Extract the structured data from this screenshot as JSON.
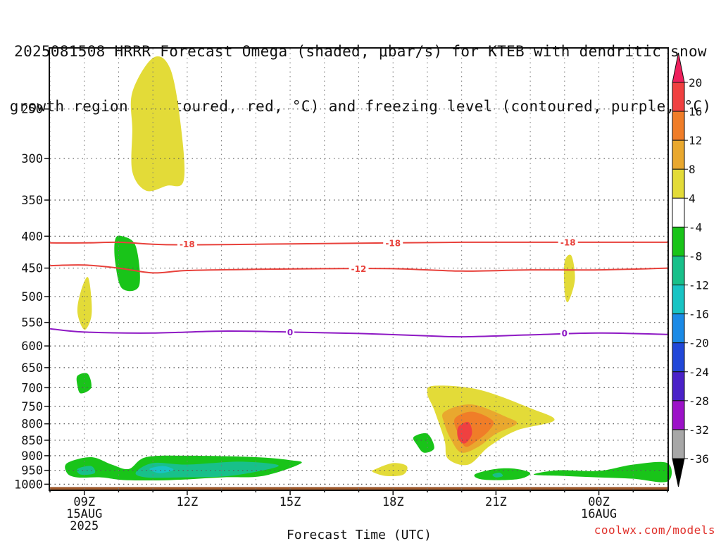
{
  "title_line1": "2025081508 HRRR Forecast Omega (shaded, μbar/s) for KTEB with dendritic snow",
  "title_line2": "growth region (contoured, red, °C) and freezing level (contoured, purple, °C)",
  "credit": "coolwx.com/models",
  "chart_data": {
    "type": "heatmap",
    "xlabel": "Forecast Time (UTC)",
    "ylabel": "",
    "x_ticks": [
      {
        "hour": 9,
        "lines": [
          "09Z",
          "15AUG",
          "2025"
        ]
      },
      {
        "hour": 12,
        "lines": [
          "12Z"
        ]
      },
      {
        "hour": 15,
        "lines": [
          "15Z"
        ]
      },
      {
        "hour": 18,
        "lines": [
          "18Z"
        ]
      },
      {
        "hour": 21,
        "lines": [
          "21Z"
        ]
      },
      {
        "hour": 24,
        "lines": [
          "00Z",
          "16AUG"
        ]
      }
    ],
    "xlim_hours": [
      8,
      26
    ],
    "y_ticks": [
      250,
      300,
      350,
      400,
      450,
      500,
      550,
      600,
      650,
      700,
      750,
      800,
      850,
      900,
      950,
      1000
    ],
    "ylim_hPa": [
      1020,
      200
    ],
    "grid": true,
    "colorbar": {
      "labels": [
        "20",
        "16",
        "12",
        "8",
        "4",
        "-4",
        "-8",
        "-12",
        "-16",
        "-20",
        "-24",
        "-28",
        "-32",
        "-36"
      ],
      "colors": [
        "#ee1f5c",
        "#f04040",
        "#f07d28",
        "#e9a82e",
        "#e3db38",
        "#ffffff",
        "#19c419",
        "#18c08a",
        "#18c4c4",
        "#1a8ae6",
        "#2147d8",
        "#4a21c8",
        "#9c12c8",
        "#a7a7a7",
        "#000000"
      ]
    },
    "contours": [
      {
        "kind": "dendritic",
        "value": -18,
        "label": "-18",
        "color": "#e8413b",
        "points": [
          [
            8,
            410
          ],
          [
            9,
            410
          ],
          [
            10,
            409
          ],
          [
            11,
            412
          ],
          [
            12,
            413
          ],
          [
            14,
            412
          ],
          [
            16,
            411
          ],
          [
            18,
            410
          ],
          [
            20,
            409
          ],
          [
            22,
            409
          ],
          [
            24,
            409
          ],
          [
            26,
            409
          ]
        ]
      },
      {
        "kind": "dendritic",
        "value": -12,
        "label": "-12",
        "color": "#e8413b",
        "points": [
          [
            8,
            446
          ],
          [
            9,
            445
          ],
          [
            10,
            450
          ],
          [
            11,
            458
          ],
          [
            12,
            454
          ],
          [
            14,
            452
          ],
          [
            16,
            451
          ],
          [
            18,
            451
          ],
          [
            20,
            455
          ],
          [
            22,
            453
          ],
          [
            24,
            453
          ],
          [
            26,
            450
          ]
        ]
      },
      {
        "kind": "freezing",
        "value": 0,
        "label": "0",
        "color": "#8e19c4",
        "points": [
          [
            8,
            563
          ],
          [
            9,
            570
          ],
          [
            11,
            572
          ],
          [
            13,
            568
          ],
          [
            15,
            570
          ],
          [
            17,
            573
          ],
          [
            19,
            578
          ],
          [
            20,
            580
          ],
          [
            22,
            576
          ],
          [
            24,
            572
          ],
          [
            26,
            575
          ]
        ]
      }
    ],
    "contour_label_positions": [
      {
        "label": "-18",
        "hour": 12.0,
        "hPa": 412
      },
      {
        "label": "-18",
        "hour": 18.0,
        "hPa": 410
      },
      {
        "label": "-18",
        "hour": 23.1,
        "hPa": 409
      },
      {
        "label": "-12",
        "hour": 17.0,
        "hPa": 451
      },
      {
        "label": "0",
        "hour": 15.0,
        "hPa": 570
      },
      {
        "label": "0",
        "hour": 23.0,
        "hPa": 572
      }
    ],
    "shaded_regions": [
      {
        "value": 4,
        "color": "#e3db38",
        "points": [
          [
            10.4,
            235
          ],
          [
            11.0,
            207
          ],
          [
            11.5,
            215
          ],
          [
            11.8,
            262
          ],
          [
            11.9,
            325
          ],
          [
            11.4,
            332
          ],
          [
            10.8,
            338
          ],
          [
            10.4,
            315
          ],
          [
            10.4,
            270
          ]
        ]
      },
      {
        "value": 4,
        "color": "#e3db38",
        "points": [
          [
            8.9,
            490
          ],
          [
            9.1,
            465
          ],
          [
            9.2,
            500
          ],
          [
            9.2,
            540
          ],
          [
            9.0,
            565
          ],
          [
            8.8,
            530
          ]
        ]
      },
      {
        "value": -4,
        "color": "#19c419",
        "points": [
          [
            9.9,
            405
          ],
          [
            10.1,
            400
          ],
          [
            10.5,
            415
          ],
          [
            10.6,
            480
          ],
          [
            10.1,
            485
          ],
          [
            9.9,
            440
          ]
        ]
      },
      {
        "value": -4,
        "color": "#19c419",
        "points": [
          [
            8.8,
            670
          ],
          [
            9.1,
            665
          ],
          [
            9.2,
            700
          ],
          [
            8.9,
            715
          ],
          [
            8.8,
            695
          ]
        ]
      },
      {
        "value": 4,
        "color": "#e3db38",
        "points": [
          [
            23.0,
            440
          ],
          [
            23.2,
            430
          ],
          [
            23.3,
            470
          ],
          [
            23.1,
            510
          ],
          [
            23.0,
            490
          ]
        ]
      },
      {
        "value": -4,
        "color": "#19c419",
        "points": [
          [
            8.5,
            925
          ],
          [
            9.2,
            905
          ],
          [
            9.8,
            930
          ],
          [
            10.3,
            945
          ],
          [
            10.8,
            905
          ],
          [
            12,
            900
          ],
          [
            14,
            905
          ],
          [
            15,
            915
          ],
          [
            15.3,
            927
          ],
          [
            14.2,
            970
          ],
          [
            13,
            975
          ],
          [
            11.5,
            985
          ],
          [
            10.2,
            985
          ],
          [
            9.5,
            975
          ],
          [
            8.8,
            975
          ],
          [
            8.5,
            960
          ]
        ]
      },
      {
        "value": -8,
        "color": "#18c08a",
        "points": [
          [
            8.8,
            945
          ],
          [
            9.2,
            935
          ],
          [
            9.3,
            960
          ],
          [
            8.9,
            965
          ]
        ]
      },
      {
        "value": -8,
        "color": "#18c08a",
        "points": [
          [
            10.5,
            958
          ],
          [
            11.0,
            925
          ],
          [
            12.0,
            930
          ],
          [
            13.5,
            920
          ],
          [
            14.6,
            930
          ],
          [
            14.4,
            945
          ],
          [
            13.2,
            970
          ],
          [
            11.8,
            975
          ],
          [
            10.8,
            975
          ]
        ]
      },
      {
        "value": -12,
        "color": "#18c4c4",
        "points": [
          [
            10.9,
            945
          ],
          [
            11.3,
            935
          ],
          [
            11.6,
            948
          ],
          [
            11.2,
            960
          ]
        ]
      },
      {
        "value": 4,
        "color": "#e3db38",
        "points": [
          [
            17.5,
            945
          ],
          [
            18.0,
            925
          ],
          [
            18.4,
            935
          ],
          [
            18.3,
            965
          ],
          [
            17.8,
            970
          ],
          [
            17.4,
            955
          ]
        ]
      },
      {
        "value": 4,
        "color": "#e3db38",
        "points": [
          [
            19.0,
            715
          ],
          [
            19.2,
            695
          ],
          [
            20.5,
            705
          ],
          [
            22.0,
            755
          ],
          [
            22.7,
            790
          ],
          [
            21.6,
            820
          ],
          [
            20.8,
            870
          ],
          [
            20.2,
            930
          ],
          [
            19.6,
            910
          ],
          [
            19.5,
            850
          ],
          [
            19.2,
            760
          ]
        ]
      },
      {
        "value": 8,
        "color": "#e9a82e",
        "points": [
          [
            19.5,
            765
          ],
          [
            20.3,
            745
          ],
          [
            21.3,
            780
          ],
          [
            21.6,
            800
          ],
          [
            21.0,
            830
          ],
          [
            20.5,
            870
          ],
          [
            20.0,
            890
          ],
          [
            19.7,
            850
          ],
          [
            19.5,
            800
          ]
        ]
      },
      {
        "value": 12,
        "color": "#f07d28",
        "points": [
          [
            19.8,
            785
          ],
          [
            20.3,
            765
          ],
          [
            20.9,
            790
          ],
          [
            20.8,
            820
          ],
          [
            20.4,
            855
          ],
          [
            20.1,
            870
          ],
          [
            19.9,
            830
          ]
        ]
      },
      {
        "value": 16,
        "color": "#f04040",
        "points": [
          [
            19.9,
            810
          ],
          [
            20.2,
            795
          ],
          [
            20.3,
            830
          ],
          [
            20.1,
            860
          ],
          [
            19.9,
            845
          ]
        ]
      },
      {
        "value": -4,
        "color": "#19c419",
        "points": [
          [
            18.6,
            840
          ],
          [
            19.0,
            830
          ],
          [
            19.2,
            875
          ],
          [
            18.9,
            890
          ],
          [
            18.7,
            865
          ]
        ]
      },
      {
        "value": -4,
        "color": "#19c419",
        "points": [
          [
            20.4,
            963
          ],
          [
            21.0,
            945
          ],
          [
            21.6,
            945
          ],
          [
            22.0,
            960
          ],
          [
            21.7,
            980
          ],
          [
            21.0,
            985
          ],
          [
            20.5,
            980
          ]
        ]
      },
      {
        "value": -8,
        "color": "#18c08a",
        "points": [
          [
            20.9,
            965
          ],
          [
            21.1,
            958
          ],
          [
            21.2,
            970
          ],
          [
            21.0,
            975
          ]
        ]
      },
      {
        "value": -4,
        "color": "#19c419",
        "points": [
          [
            22.1,
            965
          ],
          [
            22.8,
            950
          ],
          [
            24,
            952
          ],
          [
            25,
            930
          ],
          [
            26,
            925
          ],
          [
            26,
            990
          ],
          [
            25,
            980
          ],
          [
            24,
            975
          ],
          [
            23,
            970
          ]
        ]
      }
    ],
    "ground": {
      "color": "#a05a2c",
      "top_hPa": 1000
    }
  }
}
